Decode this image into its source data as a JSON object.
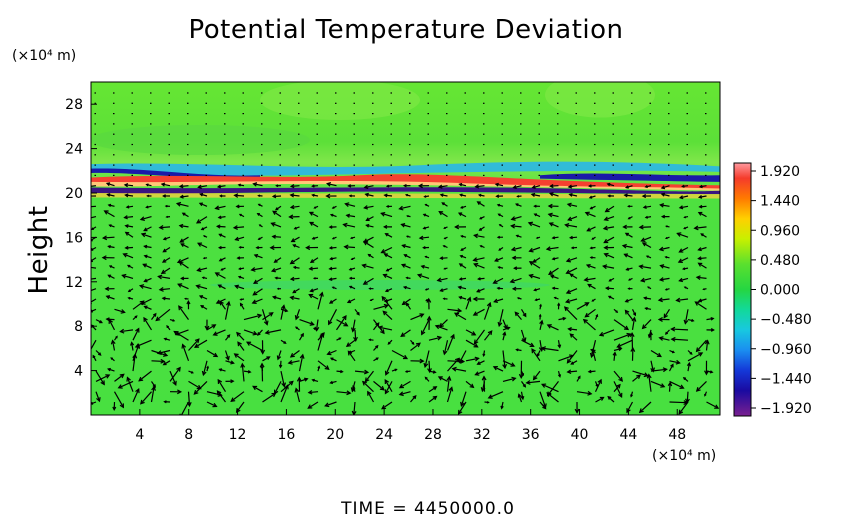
{
  "chart_data": {
    "type": "heatmap",
    "title": "Potential Temperature Deviation",
    "ylabel": "Height",
    "x_unit": "(×10⁴ m)",
    "y_unit": "(×10⁴ m)",
    "x_ticks": [
      4,
      8,
      12,
      16,
      20,
      24,
      28,
      32,
      36,
      40,
      44,
      48
    ],
    "y_ticks": [
      4,
      8,
      12,
      16,
      20,
      24,
      28
    ],
    "xlim": [
      0,
      51.5
    ],
    "ylim": [
      0,
      30
    ],
    "colorbar": {
      "ticks": [
        "1.920",
        "1.440",
        "0.960",
        "0.480",
        "0.000",
        "−0.480",
        "−0.960",
        "−1.440",
        "−1.920"
      ],
      "range": [
        -1.92,
        1.92
      ]
    },
    "overlay": "wind vectors",
    "background_value": 0.0,
    "features": [
      {
        "name": "positive band",
        "y": 21.3,
        "value": 1.9
      },
      {
        "name": "negative band",
        "y": 20.4,
        "value": -1.9
      },
      {
        "name": "negative band upper",
        "y": 22.2,
        "value": -1.2
      }
    ],
    "footer_label": "TIME",
    "footer_value": "4450000.0"
  }
}
